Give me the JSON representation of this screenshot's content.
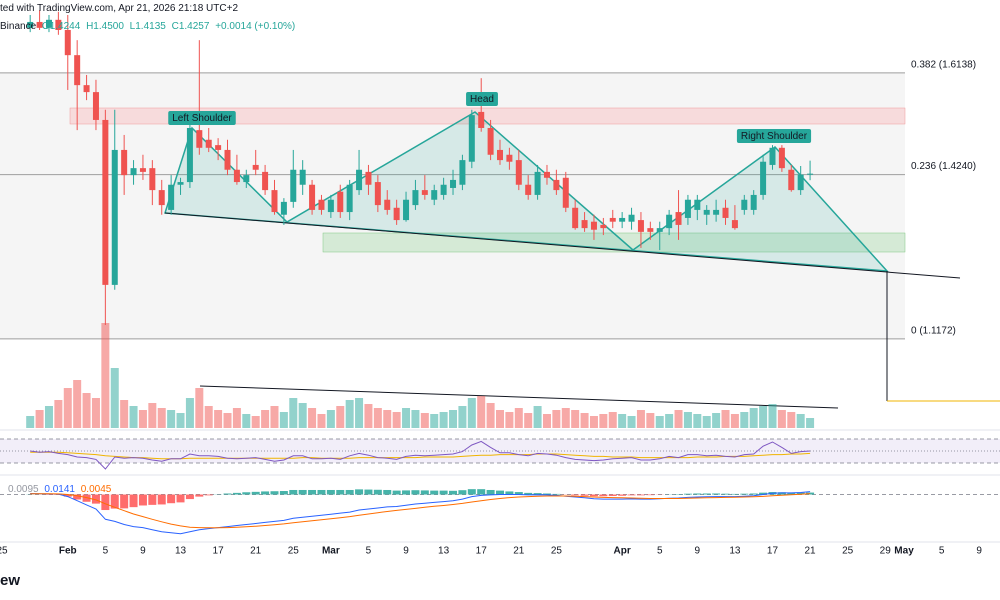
{
  "header": {
    "source": "ted with TradingView.com, Apr 21, 2026 21:18 UTC+2",
    "symbol": "Binance",
    "ohlc": [
      "O1.4244",
      "H1.4500",
      "L1.4135",
      "C1.4257",
      "+0.0014 (+0.10%)"
    ]
  },
  "chart_data": {
    "type": "candlestick",
    "xlim": [
      "2026-01-25",
      "2026-05-11"
    ],
    "ylim": [
      0.947,
      1.75
    ],
    "colors": {
      "up": "#26a69a",
      "down": "#ef5350"
    },
    "xticks": [
      {
        "value": "2026-01-25",
        "label": "25"
      },
      {
        "value": "2026-02-01",
        "label": "Feb"
      },
      {
        "value": "2026-02-05",
        "label": "5"
      },
      {
        "value": "2026-02-09",
        "label": "9"
      },
      {
        "value": "2026-02-13",
        "label": "13"
      },
      {
        "value": "2026-02-17",
        "label": "17"
      },
      {
        "value": "2026-02-21",
        "label": "21"
      },
      {
        "value": "2026-02-25",
        "label": "25"
      },
      {
        "value": "2026-03-01",
        "label": "Mar"
      },
      {
        "value": "2026-03-05",
        "label": "5"
      },
      {
        "value": "2026-03-09",
        "label": "9"
      },
      {
        "value": "2026-03-13",
        "label": "13"
      },
      {
        "value": "2026-03-17",
        "label": "17"
      },
      {
        "value": "2026-03-21",
        "label": "21"
      },
      {
        "value": "2026-03-25",
        "label": "25"
      },
      {
        "value": "2026-04-01",
        "label": "Apr"
      },
      {
        "value": "2026-04-05",
        "label": "5"
      },
      {
        "value": "2026-04-09",
        "label": "9"
      },
      {
        "value": "2026-04-13",
        "label": "13"
      },
      {
        "value": "2026-04-17",
        "label": "17"
      },
      {
        "value": "2026-04-21",
        "label": "21"
      },
      {
        "value": "2026-04-25",
        "label": "25"
      },
      {
        "value": "2026-04-29",
        "label": "29"
      },
      {
        "value": "2026-05-01",
        "label": "May"
      },
      {
        "value": "2026-05-05",
        "label": "5"
      },
      {
        "value": "2026-05-09",
        "label": "9"
      }
    ],
    "x": [
      "2026-01-28",
      "2026-01-29",
      "2026-01-30",
      "2026-01-31",
      "2026-02-01",
      "2026-02-02",
      "2026-02-03",
      "2026-02-04",
      "2026-02-05",
      "2026-02-06",
      "2026-02-07",
      "2026-02-08",
      "2026-02-09",
      "2026-02-10",
      "2026-02-11",
      "2026-02-12",
      "2026-02-13",
      "2026-02-14",
      "2026-02-15",
      "2026-02-16",
      "2026-02-17",
      "2026-02-18",
      "2026-02-19",
      "2026-02-20",
      "2026-02-21",
      "2026-02-22",
      "2026-02-23",
      "2026-02-24",
      "2026-02-25",
      "2026-02-26",
      "2026-02-27",
      "2026-02-28",
      "2026-03-01",
      "2026-03-02",
      "2026-03-03",
      "2026-03-04",
      "2026-03-05",
      "2026-03-06",
      "2026-03-07",
      "2026-03-08",
      "2026-03-09",
      "2026-03-10",
      "2026-03-11",
      "2026-03-12",
      "2026-03-13",
      "2026-03-14",
      "2026-03-15",
      "2026-03-16",
      "2026-03-17",
      "2026-03-18",
      "2026-03-19",
      "2026-03-20",
      "2026-03-21",
      "2026-03-22",
      "2026-03-23",
      "2026-03-24",
      "2026-03-25",
      "2026-03-26",
      "2026-03-27",
      "2026-03-28",
      "2026-03-29",
      "2026-03-30",
      "2026-03-31",
      "2026-04-01",
      "2026-04-02",
      "2026-04-03",
      "2026-04-04",
      "2026-04-05",
      "2026-04-06",
      "2026-04-07",
      "2026-04-08",
      "2026-04-09",
      "2026-04-10",
      "2026-04-11",
      "2026-04-12",
      "2026-04-13",
      "2026-04-14",
      "2026-04-15",
      "2026-04-16",
      "2026-04-17",
      "2026-04-18",
      "2026-04-19",
      "2026-04-20",
      "2026-04-21"
    ],
    "open": [
      1.698,
      1.709,
      1.698,
      1.713,
      1.694,
      1.647,
      1.591,
      1.578,
      1.526,
      1.218,
      1.47,
      1.423,
      1.436,
      1.436,
      1.395,
      1.358,
      1.405,
      1.41,
      1.507,
      1.489,
      1.479,
      1.47,
      1.433,
      1.41,
      1.442,
      1.429,
      1.395,
      1.349,
      1.373,
      1.405,
      1.405,
      1.377,
      1.354,
      1.392,
      1.354,
      1.395,
      1.429,
      1.41,
      1.377,
      1.362,
      1.339,
      1.367,
      1.395,
      1.377,
      1.386,
      1.399,
      1.405,
      1.448,
      1.541,
      1.511,
      1.47,
      1.461,
      1.451,
      1.405,
      1.386,
      1.429,
      1.414,
      1.418,
      1.362,
      1.339,
      1.336,
      1.33,
      1.343,
      1.336,
      1.336,
      1.339,
      1.324,
      1.317,
      1.324,
      1.354,
      1.343,
      1.358,
      1.349,
      1.349,
      1.362,
      1.339,
      1.358,
      1.358,
      1.386,
      1.442,
      1.474,
      1.433,
      1.395,
      1.4244
    ],
    "high": [
      1.722,
      1.731,
      1.722,
      1.728,
      1.722,
      1.675,
      1.61,
      1.601,
      1.545,
      1.545,
      1.498,
      1.451,
      1.461,
      1.451,
      1.414,
      1.423,
      1.418,
      1.517,
      1.675,
      1.511,
      1.492,
      1.489,
      1.461,
      1.433,
      1.47,
      1.442,
      1.414,
      1.38,
      1.47,
      1.451,
      1.414,
      1.386,
      1.386,
      1.405,
      1.414,
      1.47,
      1.442,
      1.423,
      1.395,
      1.377,
      1.392,
      1.414,
      1.423,
      1.405,
      1.418,
      1.433,
      1.461,
      1.545,
      1.604,
      1.526,
      1.489,
      1.474,
      1.47,
      1.423,
      1.442,
      1.442,
      1.433,
      1.429,
      1.377,
      1.354,
      1.349,
      1.343,
      1.358,
      1.354,
      1.362,
      1.354,
      1.336,
      1.336,
      1.358,
      1.395,
      1.386,
      1.386,
      1.367,
      1.377,
      1.377,
      1.367,
      1.386,
      1.395,
      1.461,
      1.479,
      1.479,
      1.442,
      1.44,
      1.45
    ],
    "low": [
      1.69,
      1.694,
      1.69,
      1.685,
      1.582,
      1.507,
      1.563,
      1.507,
      1.143,
      1.209,
      1.386,
      1.405,
      1.414,
      1.367,
      1.349,
      1.349,
      1.386,
      1.399,
      1.461,
      1.466,
      1.451,
      1.423,
      1.405,
      1.399,
      1.423,
      1.386,
      1.349,
      1.33,
      1.362,
      1.386,
      1.349,
      1.349,
      1.343,
      1.343,
      1.339,
      1.386,
      1.386,
      1.354,
      1.349,
      1.33,
      1.336,
      1.358,
      1.377,
      1.367,
      1.377,
      1.386,
      1.395,
      1.436,
      1.504,
      1.451,
      1.442,
      1.433,
      1.395,
      1.377,
      1.377,
      1.405,
      1.386,
      1.354,
      1.321,
      1.317,
      1.302,
      1.311,
      1.324,
      1.324,
      1.321,
      1.287,
      1.302,
      1.283,
      1.311,
      1.302,
      1.33,
      1.339,
      1.33,
      1.336,
      1.33,
      1.321,
      1.349,
      1.349,
      1.377,
      1.433,
      1.429,
      1.392,
      1.386,
      1.4135
    ],
    "close": [
      1.709,
      1.698,
      1.713,
      1.694,
      1.647,
      1.591,
      1.578,
      1.526,
      1.218,
      1.47,
      1.423,
      1.436,
      1.429,
      1.395,
      1.367,
      1.405,
      1.41,
      1.511,
      1.474,
      1.474,
      1.47,
      1.433,
      1.41,
      1.423,
      1.433,
      1.395,
      1.354,
      1.373,
      1.433,
      1.433,
      1.358,
      1.358,
      1.377,
      1.354,
      1.405,
      1.433,
      1.405,
      1.367,
      1.358,
      1.339,
      1.377,
      1.395,
      1.386,
      1.395,
      1.405,
      1.414,
      1.451,
      1.535,
      1.511,
      1.461,
      1.451,
      1.448,
      1.405,
      1.386,
      1.429,
      1.418,
      1.395,
      1.362,
      1.324,
      1.324,
      1.321,
      1.324,
      1.336,
      1.343,
      1.349,
      1.317,
      1.317,
      1.324,
      1.349,
      1.33,
      1.377,
      1.377,
      1.358,
      1.358,
      1.343,
      1.324,
      1.377,
      1.386,
      1.448,
      1.474,
      1.436,
      1.395,
      1.424,
      1.4257
    ],
    "fib": [
      {
        "price": 1.6138,
        "label": "0.382 (1.6138)"
      },
      {
        "price": 1.424,
        "label": "0.236 (1.4240)"
      },
      {
        "price": 1.1172,
        "label": "0 (1.1172)"
      }
    ],
    "annotations": {
      "left_shoulder": "Left Shoulder",
      "head": "Head",
      "right_shoulder": "Right Shoulder"
    },
    "volume": {
      "ylim": [
        0,
        430
      ],
      "values": [
        12,
        18,
        22,
        28,
        40,
        48,
        35,
        30,
        105,
        60,
        28,
        22,
        18,
        25,
        20,
        18,
        15,
        30,
        40,
        22,
        18,
        15,
        20,
        14,
        12,
        18,
        22,
        16,
        30,
        25,
        20,
        14,
        18,
        22,
        28,
        30,
        24,
        20,
        18,
        16,
        20,
        18,
        15,
        14,
        16,
        18,
        22,
        30,
        32,
        25,
        18,
        16,
        20,
        15,
        22,
        14,
        18,
        20,
        18,
        15,
        12,
        14,
        16,
        14,
        12,
        18,
        15,
        12,
        14,
        18,
        16,
        14,
        12,
        15,
        18,
        14,
        16,
        20,
        22,
        24,
        18,
        16,
        14,
        10
      ]
    },
    "rsi": {
      "ylim": [
        15,
        85
      ],
      "levels": [
        30,
        50,
        70
      ],
      "color": "#7e57c2",
      "ma_color": "#f0b400",
      "values": [
        50,
        48,
        49,
        46,
        44,
        40,
        39,
        36,
        20,
        40,
        38,
        39,
        38,
        35,
        33,
        37,
        37,
        45,
        42,
        42,
        41,
        38,
        37,
        38,
        39,
        36,
        33,
        35,
        42,
        42,
        37,
        37,
        38,
        36,
        42,
        46,
        43,
        39,
        38,
        36,
        41,
        43,
        42,
        43,
        44,
        45,
        49,
        60,
        66,
        56,
        47,
        47,
        44,
        42,
        46,
        45,
        43,
        39,
        36,
        35,
        34,
        35,
        37,
        38,
        39,
        35,
        35,
        37,
        41,
        39,
        44,
        44,
        42,
        43,
        41,
        40,
        44,
        45,
        58,
        65,
        56,
        46,
        49,
        50
      ],
      "ma": [
        48,
        48,
        48,
        48,
        47,
        46,
        45,
        44,
        42,
        41,
        40,
        39,
        39,
        38,
        37,
        37,
        37,
        38,
        38,
        38,
        38,
        38,
        38,
        38,
        38,
        38,
        38,
        38,
        38,
        39,
        39,
        38,
        38,
        38,
        38,
        39,
        39,
        39,
        39,
        39,
        39,
        39,
        40,
        40,
        40,
        40,
        41,
        42,
        43,
        43,
        44,
        44,
        44,
        44,
        45,
        45,
        45,
        44,
        43,
        42,
        41,
        41,
        40,
        40,
        40,
        39,
        39,
        39,
        39,
        39,
        39,
        40,
        40,
        40,
        41,
        41,
        41,
        42,
        43,
        44,
        44,
        45,
        45,
        46
      ]
    },
    "macd": {
      "ylim": [
        -0.22,
        0.08
      ],
      "macd_color": "#2962ff",
      "signal_color": "#ff6d00",
      "histogram": [
        0.001,
        0,
        -0.001,
        -0.001,
        -0.01,
        -0.024,
        -0.035,
        -0.044,
        -0.075,
        -0.068,
        -0.067,
        -0.061,
        -0.053,
        -0.05,
        -0.048,
        -0.042,
        -0.038,
        -0.022,
        -0.01,
        -0.004,
        0.001,
        0.005,
        0.008,
        0.011,
        0.013,
        0.015,
        0.016,
        0.017,
        0.022,
        0.022,
        0.022,
        0.022,
        0.022,
        0.022,
        0.022,
        0.025,
        0.024,
        0.023,
        0.022,
        0.019,
        0.02,
        0.021,
        0.02,
        0.019,
        0.019,
        0.018,
        0.021,
        0.026,
        0.026,
        0.022,
        0.019,
        0.015,
        0.012,
        0.008,
        0.007,
        0.005,
        0.003,
        -0.001,
        -0.004,
        -0.006,
        -0.008,
        -0.008,
        -0.007,
        -0.006,
        -0.004,
        -0.004,
        -0.003,
        -0.001,
        0.001,
        0.002,
        0.004,
        0.005,
        0.005,
        0.005,
        0.004,
        0.003,
        0.004,
        0.005,
        0.009,
        0.012,
        0.011,
        0.009,
        0.009,
        0.0095
      ],
      "macd": [
        0.005,
        0.004,
        0.003,
        0.002,
        -0.01,
        -0.03,
        -0.05,
        -0.07,
        -0.12,
        -0.13,
        -0.145,
        -0.155,
        -0.16,
        -0.17,
        -0.18,
        -0.185,
        -0.19,
        -0.18,
        -0.17,
        -0.165,
        -0.16,
        -0.155,
        -0.15,
        -0.145,
        -0.14,
        -0.135,
        -0.13,
        -0.125,
        -0.115,
        -0.11,
        -0.105,
        -0.1,
        -0.095,
        -0.09,
        -0.085,
        -0.075,
        -0.07,
        -0.065,
        -0.06,
        -0.058,
        -0.052,
        -0.046,
        -0.042,
        -0.038,
        -0.034,
        -0.03,
        -0.022,
        -0.01,
        -0.004,
        -0.002,
        0,
        0,
        0,
        -0.002,
        -0.001,
        -0.002,
        -0.004,
        -0.008,
        -0.012,
        -0.016,
        -0.02,
        -0.022,
        -0.022,
        -0.022,
        -0.021,
        -0.022,
        -0.022,
        -0.02,
        -0.018,
        -0.017,
        -0.014,
        -0.012,
        -0.011,
        -0.01,
        -0.01,
        -0.01,
        -0.008,
        -0.006,
        0,
        0.006,
        0.008,
        0.008,
        0.01,
        0.0141
      ],
      "signal": [
        0.004,
        0.004,
        0.004,
        0.003,
        0,
        -0.006,
        -0.015,
        -0.026,
        -0.045,
        -0.062,
        -0.078,
        -0.094,
        -0.107,
        -0.12,
        -0.132,
        -0.143,
        -0.152,
        -0.158,
        -0.16,
        -0.161,
        -0.161,
        -0.16,
        -0.158,
        -0.156,
        -0.153,
        -0.15,
        -0.146,
        -0.142,
        -0.137,
        -0.132,
        -0.127,
        -0.122,
        -0.117,
        -0.112,
        -0.107,
        -0.1,
        -0.094,
        -0.088,
        -0.082,
        -0.077,
        -0.072,
        -0.067,
        -0.062,
        -0.057,
        -0.053,
        -0.048,
        -0.043,
        -0.036,
        -0.03,
        -0.024,
        -0.019,
        -0.015,
        -0.012,
        -0.01,
        -0.008,
        -0.007,
        -0.007,
        -0.007,
        -0.008,
        -0.01,
        -0.012,
        -0.014,
        -0.015,
        -0.016,
        -0.017,
        -0.018,
        -0.019,
        -0.019,
        -0.019,
        -0.019,
        -0.018,
        -0.017,
        -0.016,
        -0.015,
        -0.014,
        -0.013,
        -0.012,
        -0.011,
        -0.009,
        -0.006,
        -0.003,
        -0.001,
        0.001,
        0.0045
      ]
    }
  },
  "footer": {
    "logo": "ew"
  }
}
